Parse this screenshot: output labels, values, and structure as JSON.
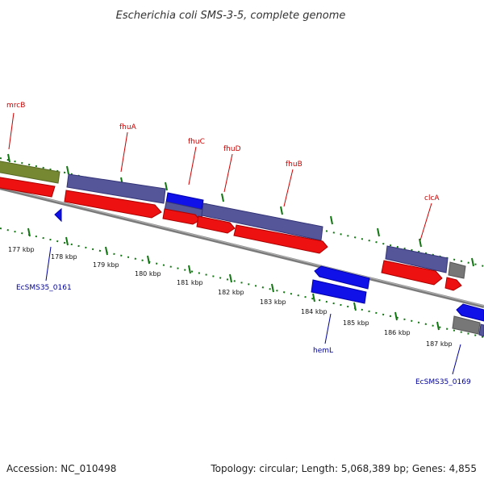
{
  "title": "Escherichia coli SMS-3-5, complete genome",
  "footer": {
    "accession": "Accession: NC_010498",
    "info": "Topology: circular; Length: 5,068,389 bp; Genes: 4,855"
  },
  "ruler": {
    "tick_labels": [
      "177 kbp",
      "178 kbp",
      "179 kbp",
      "180 kbp",
      "181 kbp",
      "182 kbp",
      "183 kbp",
      "184 kbp",
      "185 kbp",
      "186 kbp",
      "187 kbp"
    ]
  },
  "gene_labels": [
    "mrcB",
    "fhuA",
    "fhuC",
    "fhuD",
    "fhuB",
    "clcA",
    "EcSMS35_0161",
    "hemL",
    "EcSMS35_0169"
  ],
  "colors": {
    "forward_label": "#cc0000",
    "reverse_label": "#000099",
    "tick": "#117711",
    "cds_red": "#ff0000",
    "gene_purple": "#555599",
    "gene_blue": "#0000ee",
    "gene_olive": "#778833",
    "gene_gray": "#777777",
    "backbone": "#888888"
  }
}
